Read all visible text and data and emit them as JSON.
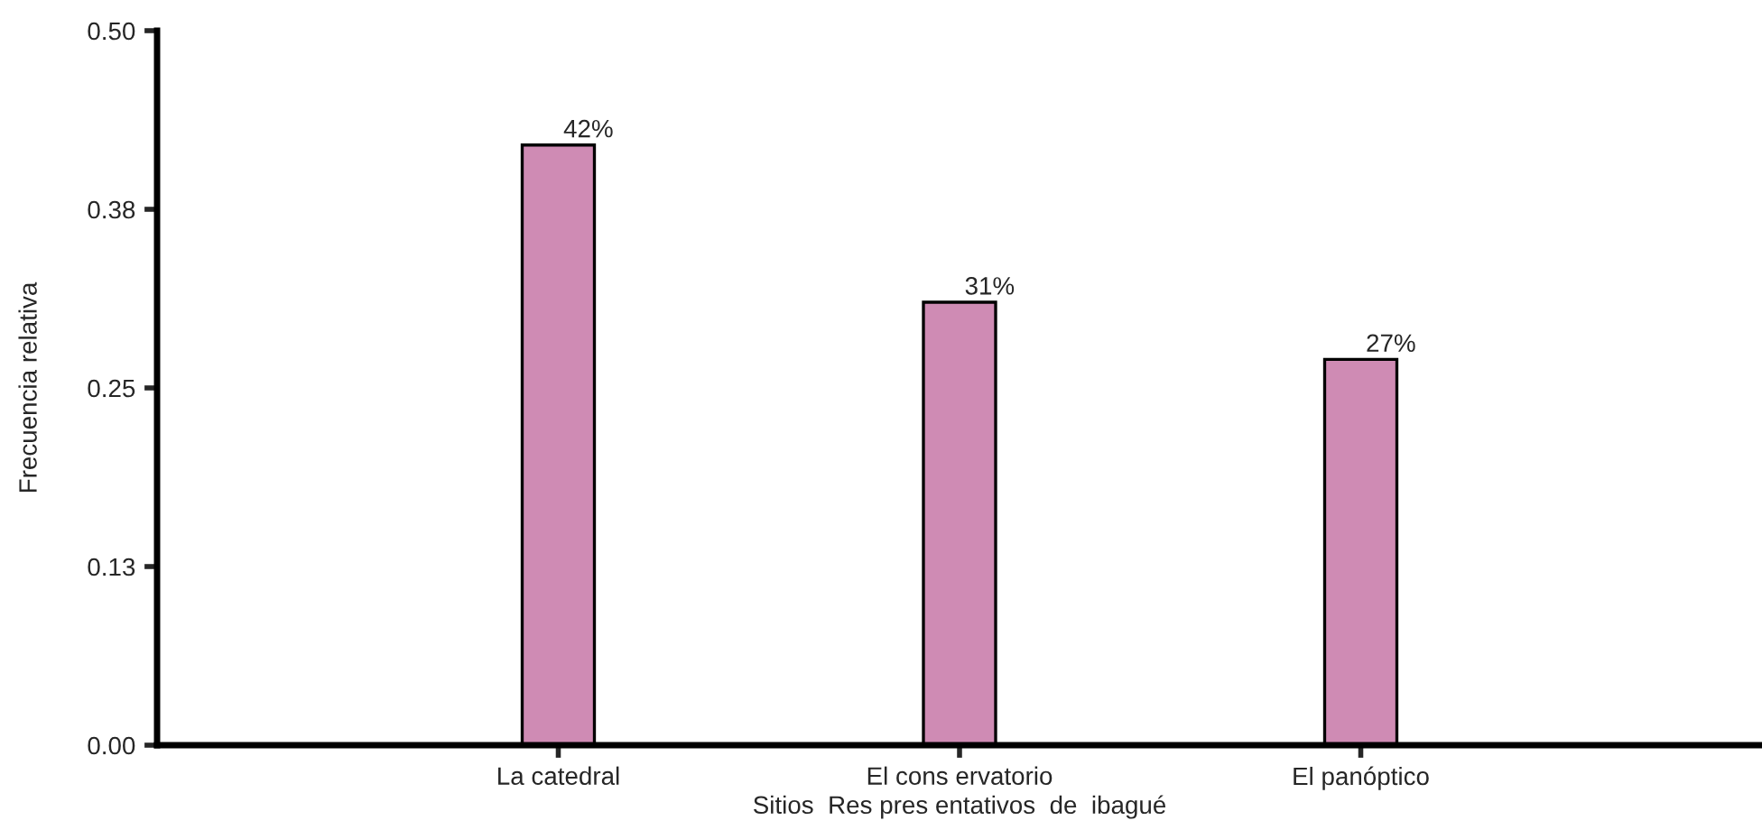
{
  "chart_data": {
    "type": "bar",
    "xlabel": "Sitios  Res pres entativos  de  ibagué",
    "ylabel": "Frecuencia relativa",
    "categories": [
      "La catedral",
      "El cons ervatorio",
      "El panóptico"
    ],
    "values": [
      0.42,
      0.31,
      0.27
    ],
    "value_labels": [
      "42%",
      "31%",
      "27%"
    ],
    "color": "#cf8bb4",
    "ylim": [
      0,
      0.5
    ],
    "yticks": [
      {
        "value": 0,
        "label": "0.00"
      },
      {
        "value": 0.125,
        "label": "0.13"
      },
      {
        "value": 0.25,
        "label": "0.25"
      },
      {
        "value": 0.375,
        "label": "0.38"
      },
      {
        "value": 0.5,
        "label": "0.50"
      }
    ],
    "grid": false,
    "legend": false
  }
}
